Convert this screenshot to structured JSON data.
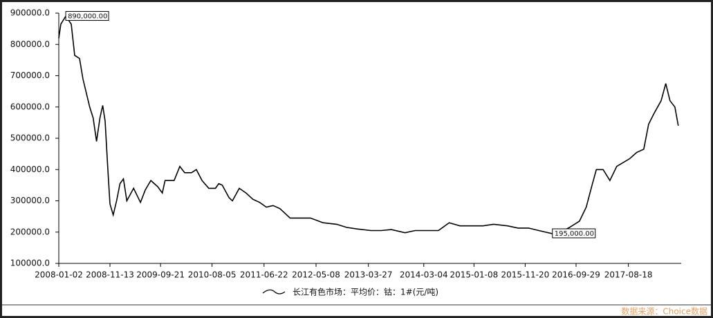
{
  "chart_data": {
    "type": "line",
    "x": [
      "2008-01-02",
      "2008-01-15",
      "2008-02-14",
      "2008-03-19",
      "2008-04-09",
      "2008-05-09",
      "2008-05-30",
      "2008-06-20",
      "2008-07-11",
      "2008-08-01",
      "2008-08-22",
      "2008-09-12",
      "2008-09-29",
      "2008-10-14",
      "2008-10-30",
      "2008-11-13",
      "2008-12-03",
      "2008-12-24",
      "2009-01-14",
      "2009-02-04",
      "2009-02-25",
      "2009-03-18",
      "2009-04-08",
      "2009-05-20",
      "2009-06-19",
      "2009-07-23",
      "2009-09-04",
      "2009-10-02",
      "2009-10-19",
      "2009-12-14",
      "2010-01-18",
      "2010-02-17",
      "2010-03-31",
      "2010-04-30",
      "2010-06-04",
      "2010-07-16",
      "2010-08-26",
      "2010-09-16",
      "2010-10-07",
      "2010-11-18",
      "2010-12-09",
      "2011-01-20",
      "2011-03-03",
      "2011-04-14",
      "2011-05-26",
      "2011-07-06",
      "2011-08-17",
      "2011-09-28",
      "2011-11-30",
      "2012-02-01",
      "2012-04-04",
      "2012-06-20",
      "2012-09-12",
      "2012-11-14",
      "2013-01-16",
      "2013-04-12",
      "2013-06-14",
      "2013-08-16",
      "2013-11-08",
      "2014-01-10",
      "2014-06-02",
      "2014-08-08",
      "2014-10-13",
      "2014-12-17",
      "2015-03-05",
      "2015-05-09",
      "2015-08-03",
      "2015-10-07",
      "2015-12-11",
      "2016-02-12",
      "2016-05-06",
      "2016-06-26",
      "2016-08-19",
      "2016-10-20",
      "2016-12-01",
      "2017-01-03",
      "2017-02-01",
      "2017-03-15",
      "2017-04-26",
      "2017-06-07",
      "2017-08-27",
      "2017-10-09",
      "2017-11-21",
      "2017-12-21",
      "2018-01-24",
      "2018-03-08",
      "2018-04-06",
      "2018-05-02",
      "2018-06-01",
      "2018-06-22"
    ],
    "series": [
      {
        "name": "长江有色市场：平均价：钴：1#(元/吨)",
        "color": "#000000",
        "values": [
          820000,
          865000,
          890000,
          865000,
          765000,
          755000,
          690000,
          645000,
          600000,
          565000,
          490000,
          565000,
          605000,
          555000,
          410000,
          290000,
          255000,
          300000,
          355000,
          370000,
          300000,
          320000,
          340000,
          295000,
          335000,
          365000,
          345000,
          325000,
          365000,
          365000,
          410000,
          390000,
          390000,
          400000,
          365000,
          340000,
          340000,
          355000,
          350000,
          310000,
          300000,
          340000,
          325000,
          305000,
          295000,
          280000,
          285000,
          275000,
          245000,
          245000,
          245000,
          230000,
          225000,
          215000,
          210000,
          205000,
          205000,
          208000,
          198000,
          205000,
          205000,
          230000,
          220000,
          220000,
          220000,
          225000,
          220000,
          213000,
          213000,
          205000,
          195000,
          200000,
          215000,
          235000,
          280000,
          345000,
          400000,
          400000,
          365000,
          410000,
          435000,
          455000,
          465000,
          545000,
          580000,
          620000,
          675000,
          620000,
          600000,
          540000
        ]
      }
    ],
    "xlim": [
      "2008-01-02",
      "2018-07-10"
    ],
    "xticks": [
      "2008-01-02",
      "2008-11-13",
      "2009-09-21",
      "2010-08-05",
      "2011-06-22",
      "2012-05-08",
      "2013-03-27",
      "2014-03-04",
      "2015-01-08",
      "2015-11-20",
      "2016-09-29",
      "2017-08-18"
    ],
    "ylim": [
      100000,
      900000
    ],
    "yticks": [
      {
        "value": 100000,
        "label": "100000.0"
      },
      {
        "value": 200000,
        "label": "200000.0"
      },
      {
        "value": 300000,
        "label": "300000.0"
      },
      {
        "value": 400000,
        "label": "400000.0"
      },
      {
        "value": 500000,
        "label": "500000.0"
      },
      {
        "value": 600000,
        "label": "600000.0"
      },
      {
        "value": 700000,
        "label": "700000.0"
      },
      {
        "value": 800000,
        "label": "800000.0"
      },
      {
        "value": 900000,
        "label": "900000.0"
      }
    ],
    "annotations": [
      {
        "x": "2008-02-14",
        "y": 890000,
        "label": "890,000.00"
      },
      {
        "x": "2016-05-06",
        "y": 195000,
        "label": "195,000.00"
      }
    ],
    "source": "数据来源：Choice数据"
  }
}
